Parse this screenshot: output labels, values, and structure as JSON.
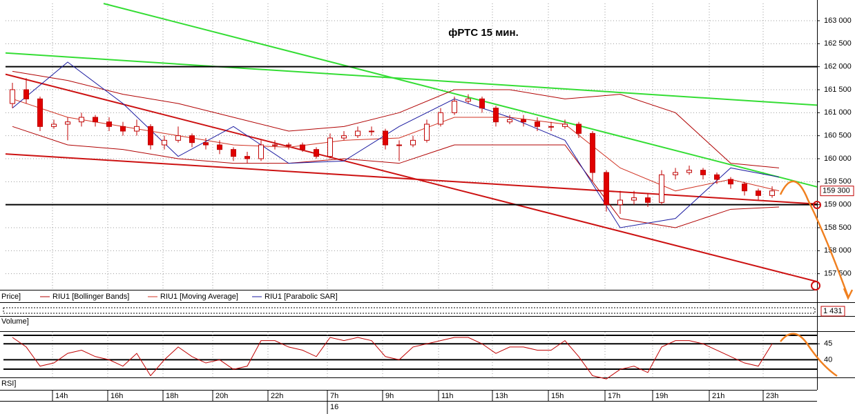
{
  "chart_data": {
    "type": "candlestick",
    "title": "фРТС   15 мин.",
    "panel_label": "Price]",
    "x": [
      1,
      3,
      5,
      7,
      9,
      11,
      13,
      15,
      17,
      19,
      21,
      23,
      25,
      27,
      29,
      31,
      33,
      35,
      37,
      39,
      41,
      43,
      45,
      47,
      49,
      51,
      53,
      55,
      57,
      59,
      61,
      63,
      65,
      67,
      69,
      71,
      73,
      75,
      77,
      79,
      81,
      83,
      85,
      87,
      89,
      91,
      93,
      95,
      97,
      99,
      101,
      103,
      105,
      107,
      109,
      111
    ],
    "open": [
      161200,
      161500,
      161300,
      160700,
      160750,
      160800,
      160900,
      160800,
      160700,
      160600,
      160700,
      160300,
      160400,
      160500,
      160350,
      160300,
      160200,
      160050,
      160000,
      160300,
      160300,
      160300,
      160200,
      160050,
      160450,
      160500,
      160600,
      160600,
      160300,
      160300,
      160400,
      160750,
      161000,
      161250,
      161300,
      161100,
      160800,
      160850,
      160800,
      160700,
      160700,
      160750,
      160550,
      159700,
      159000,
      159100,
      159150,
      159050,
      159650,
      159700,
      159750,
      159650,
      159550,
      159450,
      159300,
      159200
    ],
    "high": [
      161650,
      161750,
      161350,
      160850,
      160900,
      161000,
      160950,
      160900,
      160800,
      160850,
      160750,
      160500,
      160700,
      160550,
      160450,
      160400,
      160250,
      160150,
      160400,
      160400,
      160350,
      160350,
      160250,
      160550,
      160600,
      160700,
      160700,
      160650,
      160400,
      160500,
      160850,
      161100,
      161350,
      161400,
      161350,
      161150,
      160950,
      160950,
      160900,
      160800,
      160850,
      160800,
      160600,
      159750,
      159300,
      159300,
      159250,
      159750,
      159800,
      159850,
      159800,
      159700,
      159600,
      159500,
      159350,
      159400
    ],
    "low": [
      161100,
      161200,
      160600,
      160650,
      160400,
      160700,
      160700,
      160600,
      160500,
      160500,
      160200,
      160200,
      160350,
      160250,
      160200,
      160100,
      159950,
      159900,
      159950,
      160200,
      160200,
      160150,
      160000,
      160000,
      160400,
      160450,
      160500,
      160200,
      159950,
      160250,
      160350,
      160700,
      160950,
      161200,
      161000,
      160700,
      160750,
      160700,
      160600,
      160600,
      160650,
      160450,
      159500,
      158850,
      158800,
      159000,
      158950,
      159000,
      159550,
      159650,
      159550,
      159450,
      159350,
      159200,
      159100,
      159150
    ],
    "close": [
      161500,
      161300,
      160700,
      160750,
      160800,
      160900,
      160800,
      160700,
      160600,
      160700,
      160300,
      160400,
      160500,
      160350,
      160300,
      160200,
      160050,
      160000,
      160300,
      160300,
      160300,
      160200,
      160050,
      160450,
      160500,
      160600,
      160600,
      160300,
      160300,
      160400,
      160750,
      161000,
      161250,
      161300,
      161100,
      160800,
      160850,
      160800,
      160700,
      160700,
      160750,
      160550,
      159700,
      159000,
      159100,
      159150,
      159050,
      159650,
      159700,
      159750,
      159650,
      159550,
      159450,
      159300,
      159200,
      159300
    ],
    "up_color": "#ffffff",
    "down_color": "#e00000",
    "xlim": [
      0,
      117.5
    ],
    "ylim": [
      157150,
      163375
    ],
    "grid": true,
    "yticks": [
      {
        "value": 163000,
        "label": "163 000"
      },
      {
        "value": 162500,
        "label": "162 500"
      },
      {
        "value": 162000,
        "label": "162 000"
      },
      {
        "value": 161500,
        "label": "161 500"
      },
      {
        "value": 161000,
        "label": "161 000"
      },
      {
        "value": 160500,
        "label": "160 500"
      },
      {
        "value": 160000,
        "label": "160 000"
      },
      {
        "value": 159500,
        "label": "159 500"
      },
      {
        "value": 159000,
        "label": "159 000"
      },
      {
        "value": 158500,
        "label": "158 500"
      },
      {
        "value": 158000,
        "label": "158 000"
      },
      {
        "value": 157500,
        "label": "157 500"
      }
    ],
    "xticks": [
      {
        "value": 6.8,
        "label": "14h"
      },
      {
        "value": 14.8,
        "label": "16h"
      },
      {
        "value": 22.8,
        "label": "18h"
      },
      {
        "value": 30,
        "label": "20h"
      },
      {
        "value": 38,
        "label": "22h"
      },
      {
        "value": 46.6,
        "label": "7h"
      },
      {
        "value": 54.6,
        "label": "9h"
      },
      {
        "value": 62.7,
        "label": "11h"
      },
      {
        "value": 70.5,
        "label": "13h"
      },
      {
        "value": 78.6,
        "label": "15h"
      },
      {
        "value": 86.8,
        "label": "17h"
      },
      {
        "value": 93.7,
        "label": "19h"
      },
      {
        "value": 101.9,
        "label": "21h"
      },
      {
        "value": 109.7,
        "label": "23h"
      }
    ],
    "date_ticks": [
      {
        "value": 46.6,
        "label": "16"
      }
    ],
    "last_price": {
      "value": 159300,
      "label": "159 300"
    },
    "indicators": {
      "x": [
        1,
        9,
        17,
        25,
        33,
        41,
        49,
        57,
        65,
        73,
        81,
        89,
        97,
        105,
        112
      ],
      "series": [
        {
          "name": "RIU1 [Bollinger Bands]",
          "color": "#b00000",
          "upper": [
            161900,
            161700,
            161400,
            161200,
            160900,
            160600,
            160700,
            161000,
            161500,
            161500,
            161300,
            161400,
            161000,
            159900,
            159800
          ],
          "lower": [
            160700,
            160300,
            160200,
            160000,
            159900,
            159900,
            160000,
            159900,
            160300,
            160300,
            160300,
            158700,
            158500,
            158900,
            158950
          ]
        },
        {
          "name": "RIU1 [Moving Average]",
          "color": "#d03020",
          "values": [
            161300,
            160900,
            160700,
            160500,
            160300,
            160250,
            160400,
            160450,
            160900,
            160900,
            160750,
            159800,
            159300,
            159550,
            159300
          ]
        },
        {
          "name": "RIU1 [Parabolic SAR]",
          "color": "#1a1aa0",
          "values": [
            161100,
            162100,
            161200,
            160050,
            160700,
            159900,
            159950,
            160700,
            161300,
            160900,
            160400,
            158500,
            158700,
            159800,
            159600
          ]
        }
      ]
    },
    "trendlines": [
      {
        "color": "#33dd33",
        "x": [
          14.2,
          117.5
        ],
        "y": [
          163373,
          159388
        ]
      },
      {
        "color": "#33dd33",
        "x": [
          0,
          117.5
        ],
        "y": [
          162299,
          161164
        ]
      },
      {
        "color": "#cc1111",
        "x": [
          0,
          117.5
        ],
        "y": [
          161836,
          157328
        ]
      },
      {
        "color": "#cc1111",
        "x": [
          0,
          117.5
        ],
        "y": [
          160104,
          159015
        ]
      },
      {
        "color": "#000000",
        "x": [
          0,
          117.5
        ],
        "y": [
          162000,
          162000
        ]
      },
      {
        "color": "#000000",
        "x": [
          0,
          117.5
        ],
        "y": [
          159000,
          159000
        ]
      }
    ],
    "volume": {
      "panel_label": "Volume]",
      "last_value": {
        "value": 1431,
        "label": "1 431"
      }
    },
    "rsi": {
      "panel_label": "RSI]",
      "color": "#c00000",
      "ylim": [
        34.9,
        48.3
      ],
      "yticks": [
        45,
        40
      ],
      "values": [
        47,
        44,
        38,
        39,
        42,
        43,
        41,
        40,
        38,
        42,
        35,
        40,
        44,
        41,
        39,
        40,
        37,
        38,
        46,
        46,
        44,
        43,
        41,
        47,
        46,
        47,
        46,
        41,
        40,
        44,
        45,
        46,
        47,
        47,
        45,
        42,
        44,
        44,
        43,
        43,
        46,
        41,
        35,
        34,
        37,
        38,
        36,
        44,
        46,
        46,
        45,
        43,
        41,
        39,
        38,
        45
      ]
    }
  }
}
